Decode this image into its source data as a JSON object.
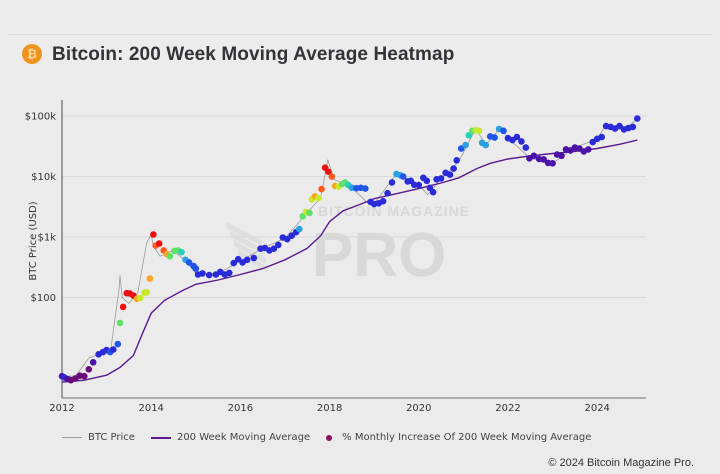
{
  "header": {
    "icon": "bitcoin-icon",
    "icon_glyph": "₿",
    "title": "Bitcoin: 200 Week Moving Average Heatmap"
  },
  "watermark": {
    "top": "BITCOIN MAGAZINE",
    "main": "PRO"
  },
  "footer": {
    "copyright": "© 2024 Bitcoin Magazine Pro."
  },
  "colors": {
    "price_line": "#9a9a9a",
    "ma_line": "#5a1a8c",
    "icon": "#f0931c",
    "heat_scale": [
      "#6a0a7a",
      "#4b12a8",
      "#2a2ad8",
      "#1f55e8",
      "#2aa0e0",
      "#25d0b8",
      "#5ee06a",
      "#c8e82a",
      "#f5a623",
      "#ff5a1a",
      "#e81010"
    ]
  },
  "chart_data": {
    "type": "scatter",
    "title": "Bitcoin: 200 Week Moving Average Heatmap",
    "xlabel": "",
    "ylabel": "BTC Price (USD)",
    "x_ticks": [
      "2012",
      "2014",
      "2016",
      "2018",
      "2020",
      "2022",
      "2024"
    ],
    "y_ticks": [
      "$100",
      "$1k",
      "$10k",
      "$100k"
    ],
    "y_tick_values": [
      100,
      1000,
      10000,
      100000
    ],
    "yscale": "log",
    "xlim": [
      2012,
      2025.1
    ],
    "ylim": [
      2.3,
      180000
    ],
    "grid": true,
    "legend": {
      "position": "bottom-left",
      "entries": [
        "BTC Price",
        "200 Week Moving Average",
        "% Monthly Increase Of 200 Week Moving Average"
      ]
    },
    "series": [
      {
        "name": "200 Week Moving Average",
        "type": "line",
        "x": [
          2012.0,
          2012.5,
          2013.0,
          2013.3,
          2013.6,
          2013.8,
          2014.0,
          2014.3,
          2014.7,
          2015.0,
          2015.5,
          2016.0,
          2016.5,
          2017.0,
          2017.5,
          2017.8,
          2018.0,
          2018.3,
          2018.7,
          2019.0,
          2019.5,
          2020.0,
          2020.5,
          2020.9,
          2021.3,
          2021.6,
          2022.0,
          2022.5,
          2023.0,
          2023.5,
          2024.0,
          2024.5,
          2024.9
        ],
        "y": [
          4,
          4.3,
          5.2,
          7,
          11,
          25,
          55,
          90,
          130,
          165,
          195,
          240,
          300,
          420,
          650,
          1050,
          1800,
          2700,
          3500,
          4300,
          5200,
          6300,
          7800,
          9500,
          13500,
          16500,
          19500,
          22000,
          24000,
          26000,
          29000,
          34000,
          40000
        ]
      },
      {
        "name": "% Monthly Increase Of 200 Week Moving Average",
        "type": "scatter",
        "points": [
          [
            2012.0,
            5.0,
            1
          ],
          [
            2012.05,
            4.8,
            2
          ],
          [
            2012.12,
            4.5,
            1
          ],
          [
            2012.2,
            4.3,
            0
          ],
          [
            2012.3,
            4.6,
            0
          ],
          [
            2012.4,
            5.1,
            0
          ],
          [
            2012.5,
            5.0,
            0
          ],
          [
            2012.6,
            6.5,
            0
          ],
          [
            2012.7,
            8.5,
            1
          ],
          [
            2012.82,
            11.5,
            2
          ],
          [
            2012.92,
            12.5,
            2
          ],
          [
            2013.0,
            13.5,
            2
          ],
          [
            2013.08,
            12.5,
            3
          ],
          [
            2013.15,
            13.8,
            2
          ],
          [
            2013.25,
            17,
            3
          ],
          [
            2013.3,
            38,
            6
          ],
          [
            2013.37,
            70,
            10
          ],
          [
            2013.45,
            118,
            10
          ],
          [
            2013.52,
            117,
            10
          ],
          [
            2013.6,
            108,
            10
          ],
          [
            2013.68,
            95,
            8
          ],
          [
            2013.75,
            98,
            7
          ],
          [
            2013.85,
            120,
            7
          ],
          [
            2013.9,
            122,
            7
          ],
          [
            2013.97,
            205,
            8
          ],
          [
            2014.05,
            1100,
            10
          ],
          [
            2014.1,
            720,
            9
          ],
          [
            2014.18,
            780,
            10
          ],
          [
            2014.28,
            600,
            9
          ],
          [
            2014.35,
            520,
            8
          ],
          [
            2014.42,
            480,
            6
          ],
          [
            2014.52,
            590,
            6
          ],
          [
            2014.6,
            600,
            6
          ],
          [
            2014.68,
            560,
            5
          ],
          [
            2014.77,
            420,
            4
          ],
          [
            2014.85,
            380,
            3
          ],
          [
            2014.95,
            330,
            3
          ],
          [
            2015.0,
            300,
            3
          ],
          [
            2015.05,
            240,
            2
          ],
          [
            2015.15,
            250,
            2
          ],
          [
            2015.3,
            235,
            2
          ],
          [
            2015.45,
            240,
            2
          ],
          [
            2015.55,
            265,
            2
          ],
          [
            2015.65,
            240,
            2
          ],
          [
            2015.75,
            255,
            2
          ],
          [
            2015.85,
            370,
            2
          ],
          [
            2015.95,
            430,
            2
          ],
          [
            2016.05,
            380,
            2
          ],
          [
            2016.15,
            420,
            2
          ],
          [
            2016.3,
            450,
            2
          ],
          [
            2016.45,
            640,
            2
          ],
          [
            2016.55,
            660,
            2
          ],
          [
            2016.65,
            600,
            2
          ],
          [
            2016.75,
            640,
            2
          ],
          [
            2016.85,
            740,
            2
          ],
          [
            2016.95,
            980,
            2
          ],
          [
            2017.05,
            920,
            2
          ],
          [
            2017.15,
            1050,
            2
          ],
          [
            2017.25,
            1200,
            2
          ],
          [
            2017.32,
            1350,
            4
          ],
          [
            2017.4,
            2200,
            6
          ],
          [
            2017.47,
            2600,
            7
          ],
          [
            2017.55,
            2500,
            6
          ],
          [
            2017.6,
            4200,
            7
          ],
          [
            2017.67,
            4700,
            8
          ],
          [
            2017.75,
            4400,
            7
          ],
          [
            2017.82,
            6200,
            9
          ],
          [
            2017.9,
            14000,
            10
          ],
          [
            2017.97,
            12000,
            10
          ],
          [
            2018.05,
            10000,
            9
          ],
          [
            2018.12,
            7000,
            8
          ],
          [
            2018.2,
            6800,
            7
          ],
          [
            2018.28,
            7500,
            6
          ],
          [
            2018.35,
            8000,
            6
          ],
          [
            2018.42,
            7200,
            5
          ],
          [
            2018.5,
            6500,
            4
          ],
          [
            2018.6,
            6400,
            3
          ],
          [
            2018.7,
            6500,
            3
          ],
          [
            2018.8,
            6300,
            3
          ],
          [
            2018.92,
            3800,
            2
          ],
          [
            2019.0,
            3500,
            2
          ],
          [
            2019.1,
            3600,
            2
          ],
          [
            2019.2,
            3900,
            2
          ],
          [
            2019.3,
            5300,
            2
          ],
          [
            2019.4,
            8000,
            2
          ],
          [
            2019.5,
            11000,
            4
          ],
          [
            2019.58,
            10500,
            4
          ],
          [
            2019.65,
            10000,
            3
          ],
          [
            2019.75,
            8300,
            2
          ],
          [
            2019.82,
            8500,
            2
          ],
          [
            2019.9,
            7300,
            2
          ],
          [
            2020.0,
            7200,
            2
          ],
          [
            2020.1,
            9500,
            2
          ],
          [
            2020.18,
            8500,
            2
          ],
          [
            2020.25,
            6500,
            2
          ],
          [
            2020.32,
            5500,
            2
          ],
          [
            2020.4,
            9000,
            2
          ],
          [
            2020.5,
            9300,
            2
          ],
          [
            2020.6,
            11500,
            2
          ],
          [
            2020.7,
            10700,
            2
          ],
          [
            2020.78,
            13500,
            2
          ],
          [
            2020.85,
            18500,
            2
          ],
          [
            2020.95,
            29000,
            3
          ],
          [
            2021.05,
            33000,
            4
          ],
          [
            2021.12,
            48000,
            5
          ],
          [
            2021.2,
            57000,
            6
          ],
          [
            2021.28,
            58000,
            7
          ],
          [
            2021.35,
            57000,
            7
          ],
          [
            2021.42,
            36000,
            4
          ],
          [
            2021.5,
            33000,
            4
          ],
          [
            2021.6,
            46000,
            3
          ],
          [
            2021.7,
            44000,
            3
          ],
          [
            2021.8,
            61000,
            4
          ],
          [
            2021.9,
            57000,
            3
          ],
          [
            2022.0,
            43000,
            2
          ],
          [
            2022.1,
            40000,
            2
          ],
          [
            2022.2,
            45000,
            2
          ],
          [
            2022.3,
            38000,
            2
          ],
          [
            2022.4,
            30000,
            2
          ],
          [
            2022.48,
            20000,
            1
          ],
          [
            2022.58,
            22000,
            1
          ],
          [
            2022.7,
            19500,
            1
          ],
          [
            2022.8,
            19200,
            1
          ],
          [
            2022.9,
            16800,
            1
          ],
          [
            2023.0,
            16500,
            1
          ],
          [
            2023.1,
            23000,
            1
          ],
          [
            2023.2,
            22000,
            1
          ],
          [
            2023.3,
            28000,
            1
          ],
          [
            2023.4,
            27000,
            1
          ],
          [
            2023.5,
            30000,
            1
          ],
          [
            2023.6,
            29000,
            1
          ],
          [
            2023.7,
            26000,
            1
          ],
          [
            2023.8,
            28000,
            1
          ],
          [
            2023.9,
            37000,
            2
          ],
          [
            2024.0,
            42000,
            2
          ],
          [
            2024.1,
            45000,
            2
          ],
          [
            2024.2,
            68000,
            2
          ],
          [
            2024.3,
            66000,
            2
          ],
          [
            2024.4,
            62000,
            2
          ],
          [
            2024.5,
            68000,
            2
          ],
          [
            2024.6,
            60000,
            2
          ],
          [
            2024.7,
            63000,
            2
          ],
          [
            2024.8,
            66000,
            2
          ],
          [
            2024.9,
            91000,
            2
          ]
        ]
      },
      {
        "name": "BTC Price",
        "type": "line",
        "x": [
          2012.0,
          2012.3,
          2012.6,
          2012.9,
          2013.1,
          2013.28,
          2013.3,
          2013.35,
          2013.5,
          2013.7,
          2013.9,
          2014.0,
          2014.05,
          2014.2,
          2014.5,
          2014.8,
          2015.0,
          2015.5,
          2016.0,
          2016.5,
          2017.0,
          2017.5,
          2017.8,
          2017.96,
          2018.1,
          2018.5,
          2018.9,
          2019.0,
          2019.5,
          2020.0,
          2020.2,
          2020.5,
          2020.9,
          2021.28,
          2021.5,
          2021.85,
          2022.0,
          2022.5,
          2023.0,
          2023.5,
          2024.0,
          2024.2,
          2024.6,
          2024.9
        ],
        "y": [
          5,
          5,
          10,
          12,
          15,
          140,
          230,
          100,
          80,
          120,
          800,
          1100,
          700,
          480,
          600,
          380,
          250,
          250,
          400,
          650,
          950,
          2500,
          4500,
          19000,
          9000,
          6500,
          3400,
          3600,
          11000,
          7200,
          5000,
          9200,
          18000,
          62000,
          33000,
          66000,
          43000,
          20000,
          16500,
          30000,
          42000,
          71000,
          58000,
          91000
        ]
      }
    ]
  }
}
